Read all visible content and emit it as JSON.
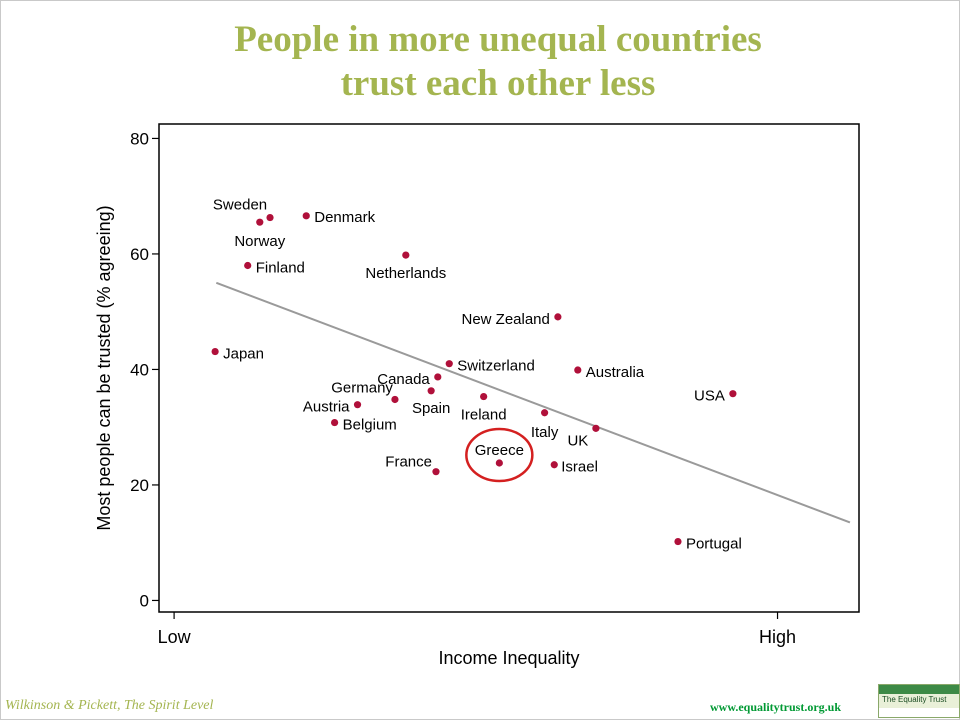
{
  "title_lines": [
    "People in more unequal countries",
    "trust each other less"
  ],
  "footer": {
    "credit": "Wilkinson & Pickett, The Spirit Level",
    "website": "www.equalitytrust.org.uk",
    "logo_text": "The Equality Trust"
  },
  "colors": {
    "title": "#a4b550",
    "point": "#b0103a",
    "trend_line": "#9a9a9a",
    "highlight_circle": "#d42020",
    "footer_text": "#a4b550",
    "website": "#009933"
  },
  "chart_data": {
    "type": "scatter",
    "xlabel": "Income Inequality",
    "ylabel": "Most people can be trusted (% agreeing)",
    "x_ticks": [
      {
        "x": 0,
        "label": "Low"
      },
      {
        "x": 100,
        "label": "High"
      }
    ],
    "y_ticks": [
      0,
      20,
      40,
      60,
      80
    ],
    "xlim": [
      -2.5,
      113.5
    ],
    "ylim": [
      -2,
      82.5
    ],
    "grid": false,
    "trend_line": {
      "x1": 7,
      "y1": 55,
      "x2": 112,
      "y2": 13.5
    },
    "highlight": "Greece",
    "points": [
      {
        "country": "Sweden",
        "x": 15.9,
        "y": 66.3
      },
      {
        "country": "Denmark",
        "x": 21.9,
        "y": 66.6
      },
      {
        "country": "Norway",
        "x": 14.2,
        "y": 65.5
      },
      {
        "country": "Finland",
        "x": 12.2,
        "y": 58.0
      },
      {
        "country": "Netherlands",
        "x": 38.4,
        "y": 59.8
      },
      {
        "country": "New Zealand",
        "x": 63.6,
        "y": 49.1
      },
      {
        "country": "Japan",
        "x": 6.8,
        "y": 43.1
      },
      {
        "country": "Switzerland",
        "x": 45.6,
        "y": 41.0
      },
      {
        "country": "Australia",
        "x": 66.9,
        "y": 39.9
      },
      {
        "country": "Canada",
        "x": 43.7,
        "y": 38.7
      },
      {
        "country": "USA",
        "x": 92.6,
        "y": 35.8
      },
      {
        "country": "Germany",
        "x": 36.6,
        "y": 34.8
      },
      {
        "country": "Spain",
        "x": 42.6,
        "y": 36.3
      },
      {
        "country": "Ireland",
        "x": 51.3,
        "y": 35.3
      },
      {
        "country": "Austria",
        "x": 30.4,
        "y": 33.9
      },
      {
        "country": "Italy",
        "x": 61.4,
        "y": 32.5
      },
      {
        "country": "Belgium",
        "x": 26.6,
        "y": 30.8
      },
      {
        "country": "UK",
        "x": 69.9,
        "y": 29.8
      },
      {
        "country": "Greece",
        "x": 53.9,
        "y": 23.8
      },
      {
        "country": "Israel",
        "x": 63.0,
        "y": 23.5
      },
      {
        "country": "France",
        "x": 43.4,
        "y": 22.3
      },
      {
        "country": "Portugal",
        "x": 83.5,
        "y": 10.2
      }
    ]
  }
}
